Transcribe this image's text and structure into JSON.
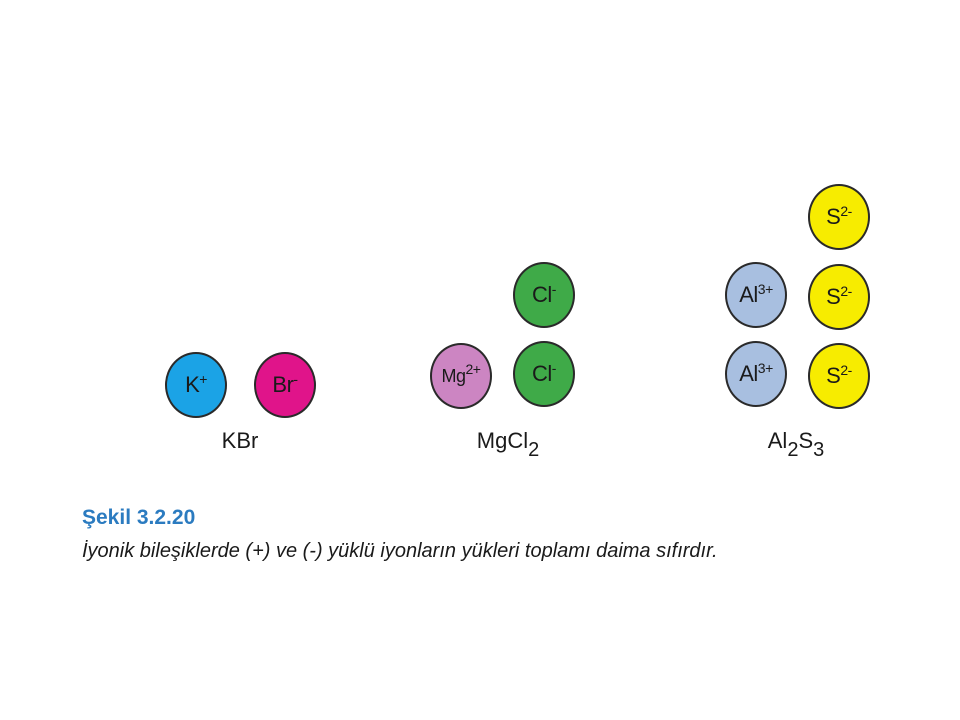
{
  "colors": {
    "K": "#1ba3e6",
    "Br": "#e0148a",
    "Mg": "#cc85c2",
    "Cl": "#3faa48",
    "Al": "#a8bfe0",
    "S": "#f7ec00",
    "caption_title": "#2b7bc0"
  },
  "compounds": [
    {
      "formula": {
        "parts": [
          "KBr"
        ],
        "subs": []
      },
      "ions": [
        {
          "symbol": "K",
          "charge": "+",
          "color_key": "K"
        },
        {
          "symbol": "Br",
          "charge": "-",
          "color_key": "Br"
        }
      ]
    },
    {
      "formula": {
        "parts": [
          "MgCl"
        ],
        "subs": [
          "2"
        ]
      },
      "ions": [
        {
          "symbol": "Mg",
          "charge": "2+",
          "color_key": "Mg"
        },
        {
          "symbol": "Cl",
          "charge": "-",
          "color_key": "Cl"
        },
        {
          "symbol": "Cl",
          "charge": "-",
          "color_key": "Cl"
        }
      ]
    },
    {
      "formula": {
        "parts": [
          "Al",
          "S"
        ],
        "subs": [
          "2",
          "3"
        ]
      },
      "ions": [
        {
          "symbol": "Al",
          "charge": "3+",
          "color_key": "Al"
        },
        {
          "symbol": "Al",
          "charge": "3+",
          "color_key": "Al"
        },
        {
          "symbol": "S",
          "charge": "2-",
          "color_key": "S"
        },
        {
          "symbol": "S",
          "charge": "2-",
          "color_key": "S"
        },
        {
          "symbol": "S",
          "charge": "2-",
          "color_key": "S"
        }
      ]
    }
  ],
  "caption": {
    "title": "Şekil 3.2.20",
    "text": "İyonik bileşiklerde (+) ve (-) yüklü iyonların yükleri toplamı daima sıfırdır."
  }
}
